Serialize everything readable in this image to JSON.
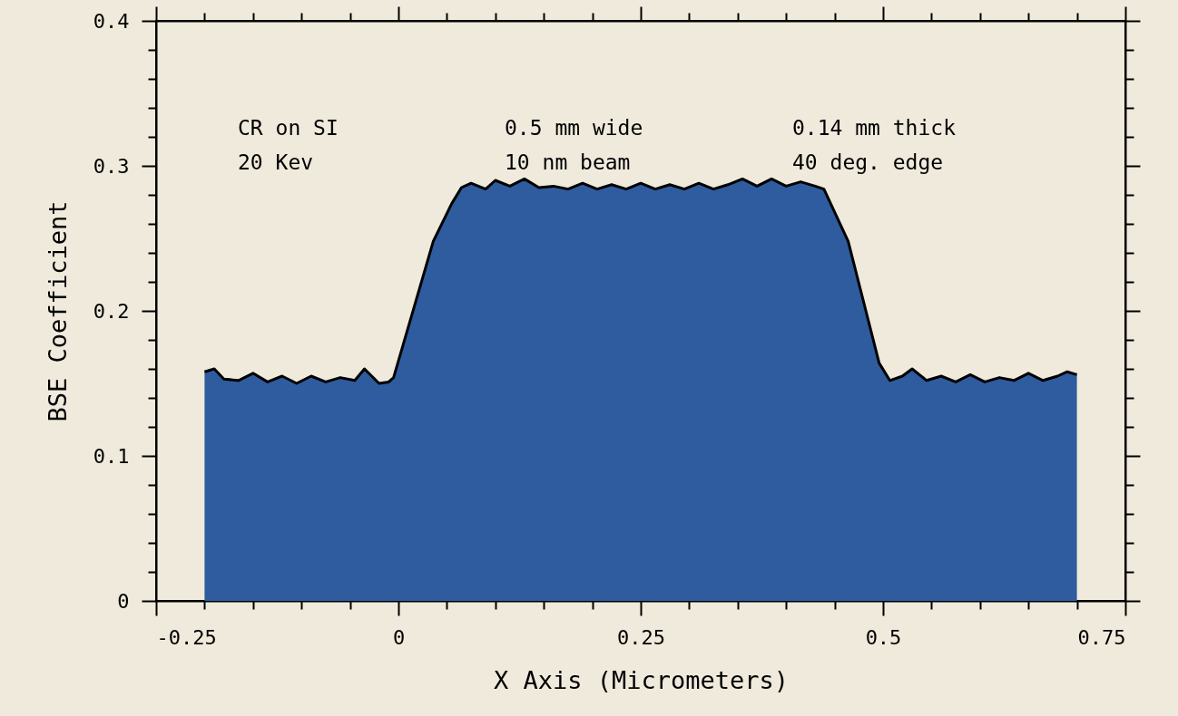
{
  "chart_data": {
    "type": "area",
    "xlabel": "X Axis (Micrometers)",
    "ylabel": "BSE Coefficient",
    "annotations": [
      "CR on SI",
      "0.5 mm wide",
      "0.14 mm thick",
      "20 Kev",
      "10 nm beam",
      "40 deg. edge"
    ],
    "x": [
      -0.2,
      -0.19,
      -0.18,
      -0.165,
      -0.15,
      -0.135,
      -0.12,
      -0.105,
      -0.09,
      -0.075,
      -0.06,
      -0.045,
      -0.035,
      -0.02,
      -0.01,
      -0.005,
      0.036,
      0.055,
      0.065,
      0.075,
      0.09,
      0.1,
      0.115,
      0.13,
      0.145,
      0.16,
      0.175,
      0.19,
      0.205,
      0.22,
      0.235,
      0.25,
      0.265,
      0.28,
      0.295,
      0.31,
      0.325,
      0.34,
      0.355,
      0.37,
      0.385,
      0.4,
      0.415,
      0.43,
      0.439,
      0.464,
      0.496,
      0.507,
      0.52,
      0.53,
      0.545,
      0.56,
      0.575,
      0.59,
      0.605,
      0.62,
      0.635,
      0.65,
      0.665,
      0.68,
      0.69,
      0.7
    ],
    "series": [
      {
        "color": "#2f5c9e",
        "values": [
          0.158,
          0.16,
          0.153,
          0.152,
          0.157,
          0.151,
          0.155,
          0.15,
          0.155,
          0.151,
          0.154,
          0.152,
          0.16,
          0.15,
          0.151,
          0.154,
          0.248,
          0.274,
          0.285,
          0.288,
          0.284,
          0.29,
          0.286,
          0.291,
          0.285,
          0.286,
          0.284,
          0.288,
          0.284,
          0.287,
          0.284,
          0.288,
          0.284,
          0.287,
          0.284,
          0.288,
          0.284,
          0.287,
          0.291,
          0.286,
          0.291,
          0.286,
          0.289,
          0.286,
          0.284,
          0.248,
          0.164,
          0.152,
          0.155,
          0.16,
          0.152,
          0.155,
          0.151,
          0.156,
          0.151,
          0.154,
          0.152,
          0.157,
          0.152,
          0.155,
          0.158,
          0.156
        ]
      }
    ],
    "xlim": [
      -0.25,
      0.75
    ],
    "xticks": [
      -0.25,
      {
        "value": -0.2,
        "label": null
      },
      {
        "value": -0.15,
        "label": null
      },
      {
        "value": -0.1,
        "label": null
      },
      {
        "value": -0.05,
        "label": null
      },
      0,
      {
        "value": 0.05,
        "label": null
      },
      {
        "value": 0.1,
        "label": null
      },
      {
        "value": 0.15,
        "label": null
      },
      {
        "value": 0.2,
        "label": null
      },
      0.25,
      {
        "value": 0.3,
        "label": null
      },
      {
        "value": 0.35,
        "label": null
      },
      {
        "value": 0.4,
        "label": null
      },
      {
        "value": 0.45,
        "label": null
      },
      0.5,
      {
        "value": 0.55,
        "label": null
      },
      {
        "value": 0.6,
        "label": null
      },
      {
        "value": 0.65,
        "label": null
      },
      {
        "value": 0.7,
        "label": null
      },
      0.75
    ],
    "ylim": [
      0,
      0.4
    ],
    "yticks": [
      0,
      {
        "value": 0.02,
        "label": null
      },
      {
        "value": 0.04,
        "label": null
      },
      {
        "value": 0.06,
        "label": null
      },
      {
        "value": 0.08,
        "label": null
      },
      0.1,
      {
        "value": 0.12,
        "label": null
      },
      {
        "value": 0.14,
        "label": null
      },
      {
        "value": 0.16,
        "label": null
      },
      {
        "value": 0.18,
        "label": null
      },
      0.2,
      {
        "value": 0.22,
        "label": null
      },
      {
        "value": 0.24,
        "label": null
      },
      {
        "value": 0.26,
        "label": null
      },
      {
        "value": 0.28,
        "label": null
      },
      0.3,
      {
        "value": 0.32,
        "label": null
      },
      {
        "value": 0.34,
        "label": null
      },
      {
        "value": 0.36,
        "label": null
      },
      {
        "value": 0.38,
        "label": null
      },
      0.4
    ],
    "grid": false
  }
}
